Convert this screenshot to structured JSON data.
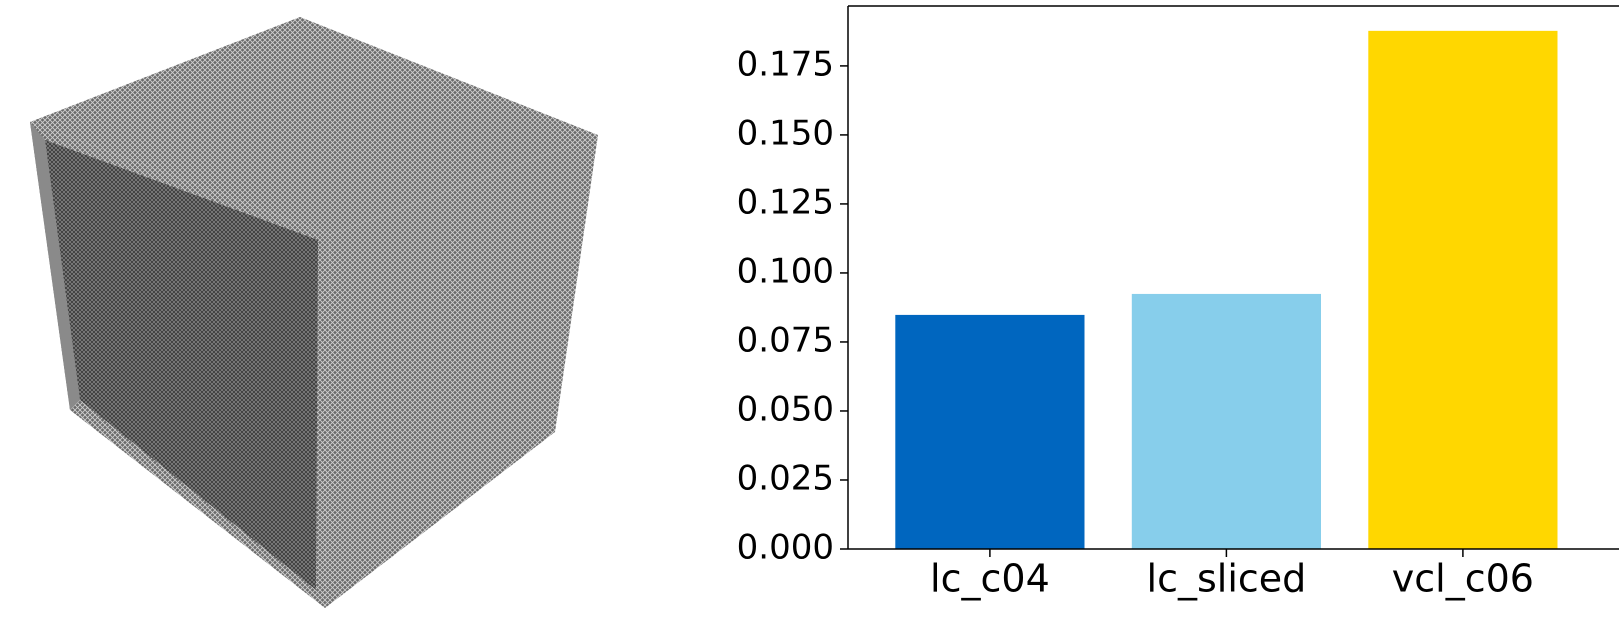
{
  "chart_data": {
    "type": "bar",
    "categories": [
      "lc_c04",
      "lc_sliced",
      "vcl_c06"
    ],
    "values": [
      0.0848,
      0.0924,
      0.1877
    ],
    "colors": [
      "#0066bf",
      "#87ceeb",
      "#ffd700"
    ],
    "ylim": [
      0,
      0.1967
    ],
    "yticks": [
      {
        "value": 0,
        "label": "0.000"
      },
      0.025,
      {
        "value": 0.05,
        "label": "0.050"
      },
      0.075,
      {
        "value": 0.1,
        "label": "0.100"
      },
      0.125,
      {
        "value": 0.15,
        "label": "0.150"
      },
      0.175
    ]
  }
}
